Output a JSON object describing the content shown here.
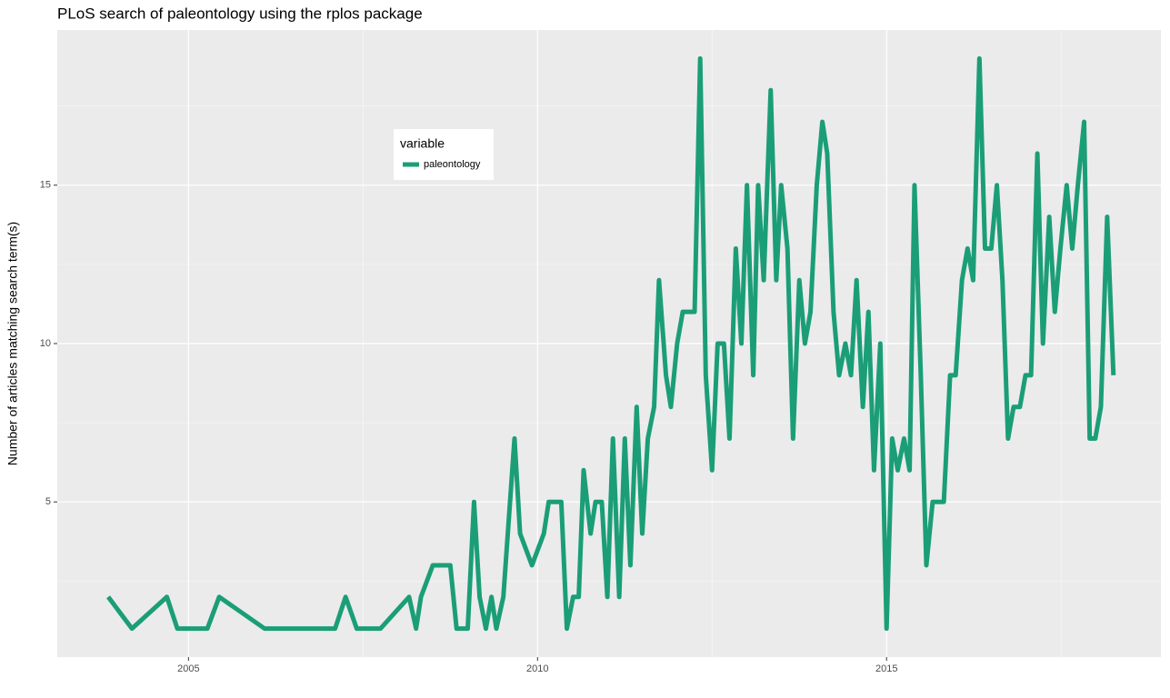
{
  "chart_data": {
    "type": "line",
    "title": "PLoS search of paleontology using the rplos package",
    "y_label": "Number of articles matching search term(s)",
    "legend_title": "variable",
    "x": [
      2003.85,
      2004.19,
      2004.69,
      2004.84,
      2005.27,
      2005.44,
      2006.09,
      2007.1,
      2007.25,
      2007.41,
      2007.75,
      2008.16,
      2008.26,
      2008.33,
      2008.5,
      2008.75,
      2008.84,
      2009.0,
      2009.09,
      2009.17,
      2009.26,
      2009.34,
      2009.41,
      2009.51,
      2009.67,
      2009.75,
      2009.92,
      2010.09,
      2010.16,
      2010.34,
      2010.42,
      2010.51,
      2010.59,
      2010.66,
      2010.76,
      2010.83,
      2010.92,
      2011.0,
      2011.08,
      2011.17,
      2011.25,
      2011.33,
      2011.42,
      2011.5,
      2011.58,
      2011.67,
      2011.74,
      2011.84,
      2011.91,
      2012.0,
      2012.08,
      2012.25,
      2012.33,
      2012.41,
      2012.5,
      2012.58,
      2012.67,
      2012.75,
      2012.84,
      2012.92,
      2013.0,
      2013.09,
      2013.16,
      2013.24,
      2013.34,
      2013.42,
      2013.49,
      2013.58,
      2013.66,
      2013.75,
      2013.83,
      2013.91,
      2014.0,
      2014.08,
      2014.15,
      2014.24,
      2014.32,
      2014.41,
      2014.49,
      2014.57,
      2014.66,
      2014.74,
      2014.82,
      2014.91,
      2015.0,
      2015.08,
      2015.16,
      2015.25,
      2015.33,
      2015.4,
      2015.49,
      2015.57,
      2015.66,
      2015.82,
      2015.91,
      2015.99,
      2016.08,
      2016.16,
      2016.24,
      2016.33,
      2016.41,
      2016.5,
      2016.58,
      2016.66,
      2016.74,
      2016.82,
      2016.91,
      2016.99,
      2017.07,
      2017.16,
      2017.24,
      2017.33,
      2017.41,
      2017.49,
      2017.58,
      2017.66,
      2017.74,
      2017.83,
      2017.91,
      2017.99,
      2018.07,
      2018.16,
      2018.25
    ],
    "series": [
      {
        "name": "paleontology",
        "color": "#1b9e77",
        "values": [
          2,
          1,
          2,
          1,
          1,
          2,
          1,
          1,
          2,
          1,
          1,
          2,
          1,
          2,
          3,
          3,
          1,
          1,
          5,
          2,
          1,
          2,
          1,
          2,
          7,
          4,
          3,
          4,
          5,
          5,
          1,
          2,
          2,
          6,
          4,
          5,
          5,
          2,
          7,
          2,
          7,
          3,
          8,
          4,
          7,
          8,
          12,
          9,
          8,
          10,
          11,
          11,
          19,
          9,
          6,
          10,
          10,
          7,
          13,
          10,
          15,
          9,
          15,
          12,
          18,
          12,
          15,
          13,
          7,
          12,
          10,
          11,
          15,
          17,
          16,
          11,
          9,
          10,
          9,
          12,
          8,
          11,
          6,
          10,
          1,
          7,
          6,
          7,
          6,
          15,
          9,
          3,
          5,
          5,
          9,
          9,
          12,
          13,
          12,
          19,
          13,
          13,
          15,
          12,
          7,
          8,
          8,
          9,
          9,
          16,
          10,
          14,
          11,
          13,
          15,
          13,
          15,
          17,
          7,
          7,
          8,
          14,
          9
        ]
      }
    ],
    "xlim": [
      2003.12,
      2018.93
    ],
    "xticks": [
      2005,
      2010,
      2015
    ],
    "ylim": [
      0.1,
      19.9
    ],
    "yticks": [
      5,
      10,
      15
    ],
    "grid": true
  }
}
